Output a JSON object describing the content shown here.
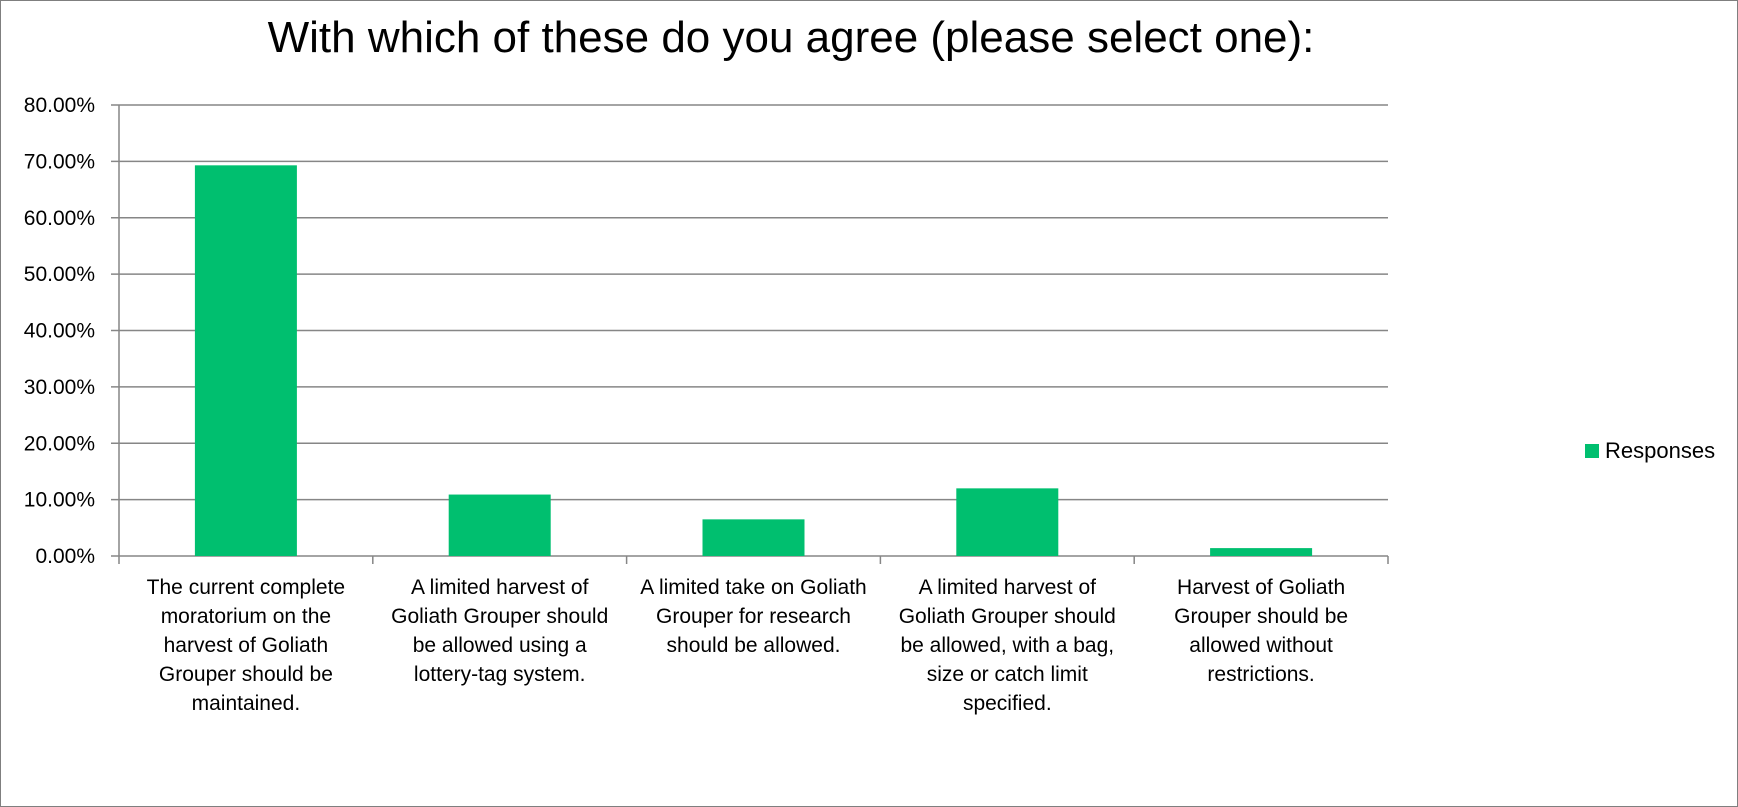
{
  "chart_data": {
    "type": "bar",
    "title": "With which of these do you agree (please select one):",
    "xlabel": "",
    "ylabel": "",
    "ylim": [
      0,
      80
    ],
    "yticks": [
      "0.00%",
      "10.00%",
      "20.00%",
      "30.00%",
      "40.00%",
      "50.00%",
      "60.00%",
      "70.00%",
      "80.00%"
    ],
    "categories": [
      [
        "The current complete",
        "moratorium on the",
        "harvest of Goliath",
        "Grouper should be",
        "maintained."
      ],
      [
        "A limited harvest of",
        "Goliath Grouper should",
        "be allowed using a",
        "lottery-tag system."
      ],
      [
        "A limited take on Goliath",
        "Grouper for research",
        "should be allowed."
      ],
      [
        "A limited harvest of",
        "Goliath Grouper should",
        "be allowed, with a bag,",
        "size or catch limit",
        "specified."
      ],
      [
        "Harvest of Goliath",
        "Grouper should be",
        "allowed without",
        "restrictions."
      ]
    ],
    "series": [
      {
        "name": "Responses",
        "values": [
          69.3,
          10.9,
          6.5,
          12.0,
          1.4
        ]
      }
    ],
    "grid": true,
    "legend_position": "right",
    "colors": {
      "bar": "#00BF6F",
      "grid": "#868686",
      "axis": "#868686"
    }
  }
}
